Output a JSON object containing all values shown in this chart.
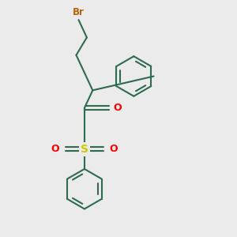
{
  "bg_color": "#ebebeb",
  "bond_color": "#2e6b4f",
  "br_color": "#b8620a",
  "o_color": "#ff0000",
  "s_color": "#cccc00",
  "line_width": 1.5,
  "figsize": [
    3.0,
    3.0
  ],
  "dpi": 100,
  "xlim": [
    0,
    10
  ],
  "ylim": [
    0,
    10
  ]
}
